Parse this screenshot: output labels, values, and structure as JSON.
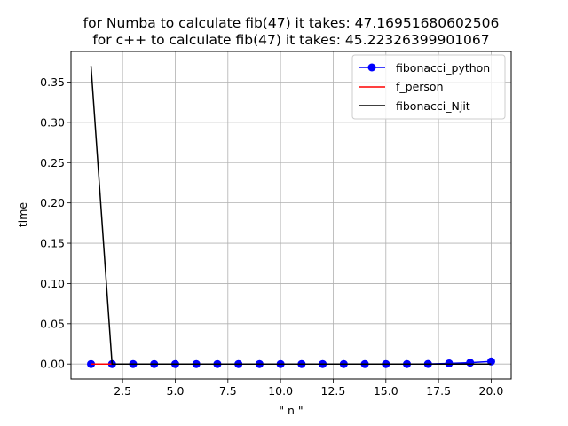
{
  "chart_data": {
    "type": "line",
    "title_lines": [
      "for Numba to calculate fib(47) it takes: 47.16951680602506",
      "for c++ to calculate fib(47) it takes: 45.22326399901067"
    ],
    "xlabel": "\" n \"",
    "ylabel": "time",
    "xlim": [
      0.05,
      20.95
    ],
    "ylim": [
      -0.0185,
      0.388
    ],
    "xticks": [
      2.5,
      5.0,
      7.5,
      10.0,
      12.5,
      15.0,
      17.5,
      20.0
    ],
    "xtick_labels": [
      "2.5",
      "5.0",
      "7.5",
      "10.0",
      "12.5",
      "15.0",
      "17.5",
      "20.0"
    ],
    "yticks": [
      0.0,
      0.05,
      0.1,
      0.15,
      0.2,
      0.25,
      0.3,
      0.35
    ],
    "ytick_labels": [
      "0.00",
      "0.05",
      "0.10",
      "0.15",
      "0.20",
      "0.25",
      "0.30",
      "0.35"
    ],
    "grid": true,
    "legend_position": "top-right",
    "x": [
      1,
      2,
      3,
      4,
      5,
      6,
      7,
      8,
      9,
      10,
      11,
      12,
      13,
      14,
      15,
      16,
      17,
      18,
      19,
      20
    ],
    "series": [
      {
        "name": "fibonacci_python",
        "color": "#0000ff",
        "marker": "circle",
        "values": [
          0.0,
          0.0,
          0.0,
          0.0,
          0.0,
          0.0,
          0.0,
          0.0,
          0.0,
          0.0,
          0.0,
          0.0,
          0.0,
          0.0,
          0.0,
          0.0,
          0.0001,
          0.0008,
          0.0017,
          0.0032
        ]
      },
      {
        "name": "f_person",
        "color": "#ff0000",
        "marker": "none",
        "values": [
          0.0,
          0.0,
          0.0,
          0.0,
          0.0,
          0.0,
          0.0,
          0.0,
          0.0,
          0.0,
          0.0,
          0.0,
          0.0,
          0.0,
          0.0,
          0.0,
          0.0,
          0.0,
          0.0,
          0.0
        ]
      },
      {
        "name": "fibonacci_Njit",
        "color": "#000000",
        "marker": "none",
        "values": [
          0.37,
          0.0,
          0.0,
          0.0,
          0.0,
          0.0,
          0.0,
          0.0,
          0.0,
          0.0,
          0.0,
          0.0,
          0.0,
          0.0,
          0.0,
          0.0,
          0.0,
          0.0,
          0.0,
          0.0
        ]
      }
    ]
  }
}
